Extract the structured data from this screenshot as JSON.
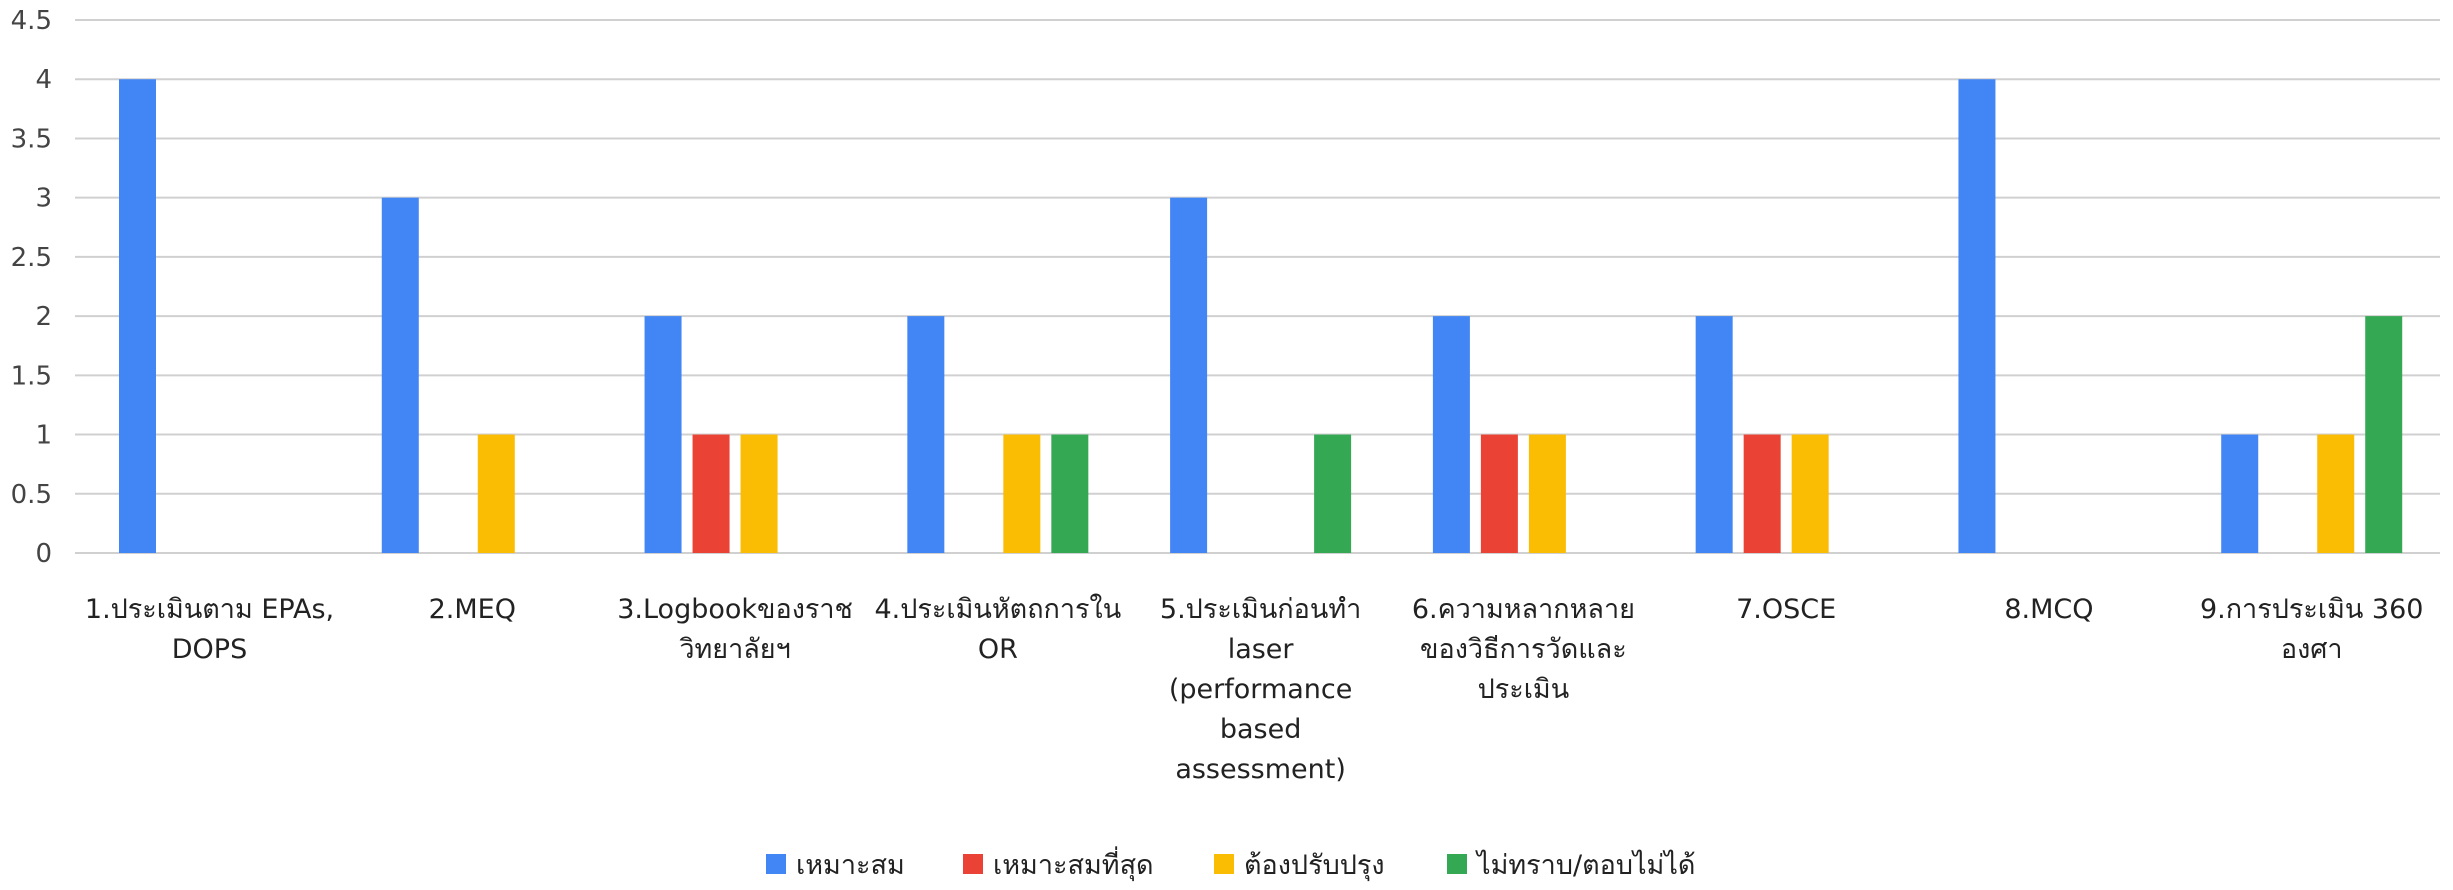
{
  "chart_data": {
    "type": "bar",
    "categories": [
      [
        "1.ประเมินตาม EPAs,",
        "DOPS"
      ],
      [
        "2.MEQ"
      ],
      [
        "3.Logbookของราช",
        "วิทยาลัยฯ"
      ],
      [
        "4.ประเมินหัตถการใน",
        "OR"
      ],
      [
        "5.ประเมินก่อนทำ",
        "laser",
        "(performance",
        "based",
        "assessment)"
      ],
      [
        "6.ความหลากหลาย",
        "ของวิธีการวัดและ",
        "ประเมิน"
      ],
      [
        "7.OSCE"
      ],
      [
        "8.MCQ"
      ],
      [
        "9.การประเมิน 360",
        "องศา"
      ]
    ],
    "series": [
      {
        "name": "เหมาะสม",
        "color": "#4285F4",
        "values": [
          4,
          3,
          2,
          2,
          3,
          2,
          2,
          4,
          1
        ]
      },
      {
        "name": "เหมาะสมที่สุด",
        "color": "#EA4335",
        "values": [
          0,
          0,
          1,
          0,
          0,
          1,
          1,
          0,
          0
        ]
      },
      {
        "name": "ต้องปรับปรุง",
        "color": "#FBBC04",
        "values": [
          0,
          1,
          1,
          1,
          0,
          1,
          1,
          0,
          1
        ]
      },
      {
        "name": "ไม่ทราบ/ตอบไม่ได้",
        "color": "#34A853",
        "values": [
          0,
          0,
          0,
          1,
          1,
          0,
          0,
          0,
          2
        ]
      }
    ],
    "ylim": [
      0,
      4.5
    ],
    "yticks": [
      "0",
      "0.5",
      "1",
      "1.5",
      "2",
      "2.5",
      "3",
      "3.5",
      "4",
      "4.5"
    ],
    "grid": true,
    "legend_position": "bottom"
  }
}
